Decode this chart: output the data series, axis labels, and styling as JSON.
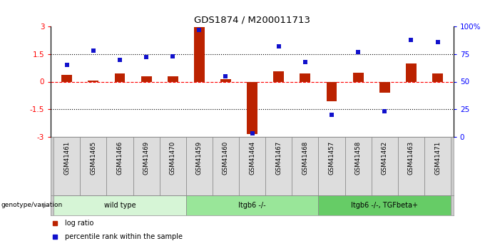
{
  "title": "GDS1874 / M200011713",
  "samples": [
    "GSM41461",
    "GSM41465",
    "GSM41466",
    "GSM41469",
    "GSM41470",
    "GSM41459",
    "GSM41460",
    "GSM41464",
    "GSM41467",
    "GSM41468",
    "GSM41457",
    "GSM41458",
    "GSM41462",
    "GSM41463",
    "GSM41471"
  ],
  "log_ratio": [
    0.35,
    0.05,
    0.45,
    0.3,
    0.28,
    2.95,
    0.15,
    -2.85,
    0.55,
    0.45,
    -1.05,
    0.48,
    -0.6,
    1.0,
    0.45
  ],
  "percentile_rank": [
    65,
    78,
    70,
    72,
    73,
    97,
    55,
    3,
    82,
    68,
    20,
    77,
    23,
    88,
    86
  ],
  "groups": [
    {
      "label": "wild type",
      "start": 0,
      "end": 5,
      "color": "#d6f5d6"
    },
    {
      "label": "Itgb6 -/-",
      "start": 5,
      "end": 10,
      "color": "#99e699"
    },
    {
      "label": "Itgb6 -/-, TGFbeta+",
      "start": 10,
      "end": 15,
      "color": "#66cc66"
    }
  ],
  "bar_color": "#bb2200",
  "dot_color": "#1111cc",
  "ylim_left": [
    -3,
    3
  ],
  "ylim_right": [
    0,
    100
  ],
  "yticks_left": [
    -3,
    -1.5,
    0,
    1.5,
    3
  ],
  "yticks_right": [
    0,
    25,
    50,
    75,
    100
  ],
  "yticklabels_right": [
    "0",
    "25",
    "50",
    "75",
    "100%"
  ],
  "hline_dotted": [
    -1.5,
    1.5
  ],
  "hline_red": 0,
  "background_color": "#ffffff",
  "legend_red_label": "log ratio",
  "legend_blue_label": "percentile rank within the sample",
  "bar_width": 0.4
}
